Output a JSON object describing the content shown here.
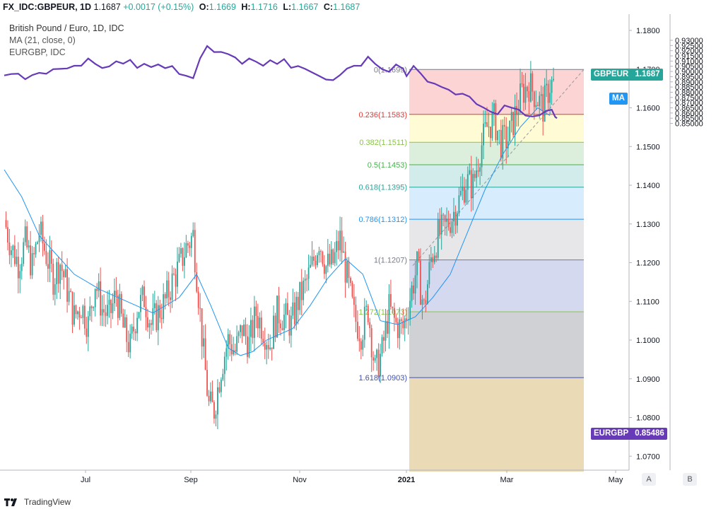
{
  "header": {
    "symbol": "FX_IDC:GBPEUR, 1D",
    "last": "1.1687",
    "change": "+0.0017 (+0.15%)",
    "o_label": "O:",
    "o": "1.1669",
    "h_label": "H:",
    "h": "1.1716",
    "l_label": "L:",
    "l": "1.1667",
    "c_label": "C:",
    "c": "1.1687"
  },
  "legend": {
    "title": "British Pound / Euro, 1D, IDC",
    "ma": "MA (21, close, 0)",
    "overlay": "EURGBP, IDC"
  },
  "badges": {
    "gbpeur_name": "GBPEUR",
    "gbpeur_value": "1.1687",
    "ma": "MA",
    "eurgbp_name": "EURGBP",
    "eurgbp_value": "0.85486"
  },
  "footer": {
    "brand": "TradingView"
  },
  "scale_buttons": {
    "a": "A",
    "b": "B"
  },
  "colors": {
    "up": "#26a69a",
    "down": "#ef5350",
    "ma": "#2196f3",
    "eurgbp": "#673ab7",
    "badge_gbpeur": "#26a69a",
    "badge_eurgbp": "#673ab7"
  },
  "chart_data": {
    "type": "candlestick",
    "title": "British Pound / Euro, 1D, IDC",
    "x_ticks": [
      "Jul",
      "Sep",
      "Nov",
      "2021",
      "Mar",
      "May"
    ],
    "left_axis": {
      "ticks": [
        "1.1800",
        "1.1700",
        "1.1600",
        "1.1500",
        "1.1400",
        "1.1300",
        "1.1200",
        "1.1100",
        "1.1000",
        "1.0900",
        "1.0800",
        "1.0700"
      ],
      "range": [
        1.065,
        1.185
      ]
    },
    "right_axis": {
      "ticks": [
        "0.93000",
        "0.92500",
        "0.92000",
        "0.91500",
        "0.91000",
        "0.90500",
        "0.90000",
        "0.89500",
        "0.89000",
        "0.88500",
        "0.88000",
        "0.87500",
        "0.87000",
        "0.86500",
        "0.86000",
        "0.85500",
        "0.85000"
      ],
      "range": [
        0.8475,
        0.9325
      ]
    },
    "fib_levels": [
      {
        "label": "0(1.1699)",
        "price": 1.1699,
        "line": "#787b86",
        "fill": "rgba(239,83,80,0.25)"
      },
      {
        "label": "0.236(1.1583)",
        "price": 1.1583,
        "line": "#e53935",
        "fill": "rgba(255,235,59,0.22)"
      },
      {
        "label": "0.382(1.1511)",
        "price": 1.1511,
        "line": "#8bc34a",
        "fill": "rgba(76,175,80,0.20)"
      },
      {
        "label": "0.5(1.1453)",
        "price": 1.1453,
        "line": "#4caf50",
        "fill": "rgba(0,150,136,0.18)"
      },
      {
        "label": "0.618(1.1395)",
        "price": 1.1395,
        "line": "#26a69a",
        "fill": "rgba(33,150,243,0.18)"
      },
      {
        "label": "0.786(1.1312)",
        "price": 1.1312,
        "line": "#2196f3",
        "fill": "rgba(120,123,134,0.18)"
      },
      {
        "label": "1(1.1207)",
        "price": 1.1207,
        "line": "#787b86",
        "fill": "rgba(63,81,181,0.22)"
      },
      {
        "label": "1.272(1.1073)",
        "price": 1.1073,
        "line": "#8bc34a",
        "fill": "rgba(120,123,134,0.35)"
      },
      {
        "label": "1.618(1.0903)",
        "price": 1.0903,
        "line": "#3f51b5",
        "fill": "rgba(184,134,11,0.30)"
      }
    ],
    "fib_bottom_price": 1.066,
    "gbpeur_close": [
      [
        0,
        1.131
      ],
      [
        4,
        1.124
      ],
      [
        8,
        1.12
      ],
      [
        12,
        1.125
      ],
      [
        16,
        1.119
      ],
      [
        20,
        1.128
      ],
      [
        24,
        1.122
      ],
      [
        28,
        1.116
      ],
      [
        32,
        1.12
      ],
      [
        36,
        1.113
      ],
      [
        40,
        1.106
      ],
      [
        44,
        1.109
      ],
      [
        48,
        1.104
      ],
      [
        52,
        1.115
      ],
      [
        56,
        1.108
      ],
      [
        60,
        1.106
      ],
      [
        64,
        1.112
      ],
      [
        68,
        1.103
      ],
      [
        72,
        1.098
      ],
      [
        76,
        1.108
      ],
      [
        80,
        1.111
      ],
      [
        84,
        1.104
      ],
      [
        88,
        1.107
      ],
      [
        92,
        1.11
      ],
      [
        96,
        1.115
      ],
      [
        100,
        1.119
      ],
      [
        104,
        1.124
      ],
      [
        108,
        1.127
      ],
      [
        111,
        1.112
      ],
      [
        114,
        1.096
      ],
      [
        117,
        1.083
      ],
      [
        120,
        1.082
      ],
      [
        124,
        1.093
      ],
      [
        128,
        1.1
      ],
      [
        132,
        1.097
      ],
      [
        136,
        1.103
      ],
      [
        140,
        1.099
      ],
      [
        144,
        1.107
      ],
      [
        148,
        1.103
      ],
      [
        152,
        1.099
      ],
      [
        156,
        1.107
      ],
      [
        160,
        1.106
      ],
      [
        164,
        1.104
      ],
      [
        168,
        1.11
      ],
      [
        172,
        1.114
      ],
      [
        176,
        1.119
      ],
      [
        180,
        1.126
      ],
      [
        184,
        1.119
      ],
      [
        188,
        1.12
      ],
      [
        192,
        1.126
      ],
      [
        196,
        1.116
      ],
      [
        200,
        1.106
      ],
      [
        204,
        1.102
      ],
      [
        208,
        1.108
      ],
      [
        212,
        1.092
      ],
      [
        216,
        1.097
      ],
      [
        220,
        1.108
      ],
      [
        224,
        1.104
      ],
      [
        228,
        1.103
      ],
      [
        232,
        1.111
      ],
      [
        236,
        1.119
      ],
      [
        240,
        1.108
      ],
      [
        244,
        1.121
      ],
      [
        248,
        1.127
      ],
      [
        252,
        1.129
      ],
      [
        256,
        1.132
      ],
      [
        260,
        1.136
      ],
      [
        264,
        1.141
      ],
      [
        268,
        1.14
      ],
      [
        272,
        1.149
      ],
      [
        276,
        1.155
      ],
      [
        280,
        1.157
      ],
      [
        284,
        1.151
      ],
      [
        288,
        1.152
      ],
      [
        292,
        1.158
      ],
      [
        296,
        1.164
      ],
      [
        300,
        1.166
      ],
      [
        304,
        1.163
      ],
      [
        308,
        1.16
      ],
      [
        312,
        1.166
      ]
    ],
    "ma21": [
      [
        0,
        1.144
      ],
      [
        10,
        1.137
      ],
      [
        20,
        1.127
      ],
      [
        30,
        1.122
      ],
      [
        40,
        1.117
      ],
      [
        55,
        1.113
      ],
      [
        70,
        1.11
      ],
      [
        85,
        1.107
      ],
      [
        100,
        1.111
      ],
      [
        110,
        1.117
      ],
      [
        118,
        1.109
      ],
      [
        128,
        1.098
      ],
      [
        135,
        1.096
      ],
      [
        142,
        1.097
      ],
      [
        150,
        1.1
      ],
      [
        165,
        1.103
      ],
      [
        175,
        1.109
      ],
      [
        185,
        1.116
      ],
      [
        195,
        1.121
      ],
      [
        205,
        1.117
      ],
      [
        215,
        1.105
      ],
      [
        225,
        1.104
      ],
      [
        235,
        1.106
      ],
      [
        245,
        1.111
      ],
      [
        255,
        1.117
      ],
      [
        265,
        1.128
      ],
      [
        275,
        1.139
      ],
      [
        285,
        1.148
      ],
      [
        295,
        1.155
      ],
      [
        305,
        1.16
      ],
      [
        312,
        1.158
      ]
    ],
    "eurgbp_close": [
      [
        0,
        0.8962
      ],
      [
        4,
        0.8975
      ],
      [
        8,
        0.8978
      ],
      [
        12,
        0.8925
      ],
      [
        16,
        0.8965
      ],
      [
        20,
        0.8987
      ],
      [
        24,
        0.8977
      ],
      [
        28,
        0.9022
      ],
      [
        32,
        0.9025
      ],
      [
        36,
        0.9029
      ],
      [
        40,
        0.9055
      ],
      [
        44,
        0.9055
      ],
      [
        48,
        0.9125
      ],
      [
        52,
        0.9073
      ],
      [
        56,
        0.9033
      ],
      [
        60,
        0.9048
      ],
      [
        64,
        0.9098
      ],
      [
        68,
        0.9075
      ],
      [
        72,
        0.9112
      ],
      [
        76,
        0.9034
      ],
      [
        80,
        0.9074
      ],
      [
        84,
        0.9042
      ],
      [
        88,
        0.9068
      ],
      [
        92,
        0.9032
      ],
      [
        96,
        0.9052
      ],
      [
        100,
        0.8975
      ],
      [
        104,
        0.8958
      ],
      [
        108,
        0.8935
      ],
      [
        112,
        0.9128
      ],
      [
        116,
        0.9245
      ],
      [
        120,
        0.9187
      ],
      [
        124,
        0.9188
      ],
      [
        128,
        0.9167
      ],
      [
        132,
        0.9135
      ],
      [
        136,
        0.9073
      ],
      [
        140,
        0.9125
      ],
      [
        144,
        0.9094
      ],
      [
        148,
        0.9055
      ],
      [
        152,
        0.9108
      ],
      [
        156,
        0.9072
      ],
      [
        160,
        0.9119
      ],
      [
        164,
        0.9035
      ],
      [
        168,
        0.9052
      ],
      [
        172,
        0.9025
      ],
      [
        176,
        0.8991
      ],
      [
        180,
        0.8957
      ],
      [
        184,
        0.8922
      ],
      [
        188,
        0.8916
      ],
      [
        192,
        0.8965
      ],
      [
        196,
        0.9028
      ],
      [
        200,
        0.9055
      ],
      [
        204,
        0.9054
      ],
      [
        208,
        0.9142
      ],
      [
        212,
        0.9074
      ],
      [
        216,
        0.9022
      ],
      [
        220,
        0.8997
      ],
      [
        224,
        0.9067
      ],
      [
        228,
        0.9027
      ],
      [
        230,
        0.8955
      ],
      [
        234,
        0.9053
      ],
      [
        238,
        0.8982
      ],
      [
        242,
        0.8902
      ],
      [
        246,
        0.8883
      ],
      [
        250,
        0.8851
      ],
      [
        254,
        0.8825
      ],
      [
        258,
        0.8778
      ],
      [
        262,
        0.8786
      ],
      [
        266,
        0.8757
      ],
      [
        270,
        0.8686
      ],
      [
        274,
        0.8652
      ],
      [
        278,
        0.8613
      ],
      [
        282,
        0.8587
      ],
      [
        286,
        0.8673
      ],
      [
        290,
        0.8651
      ],
      [
        294,
        0.8633
      ],
      [
        298,
        0.8575
      ],
      [
        302,
        0.8566
      ],
      [
        306,
        0.8578
      ],
      [
        310,
        0.8621
      ],
      [
        313,
        0.8632
      ],
      [
        315,
        0.8562
      ],
      [
        316,
        0.8549
      ]
    ]
  }
}
